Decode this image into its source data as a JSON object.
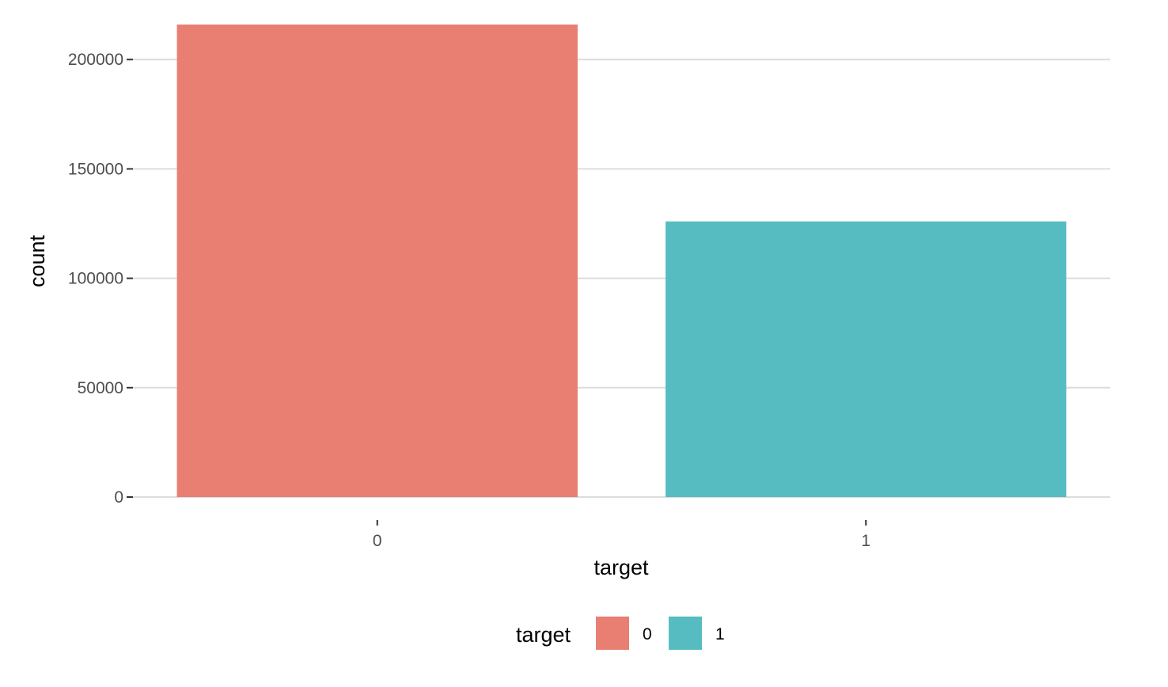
{
  "chart_data": {
    "type": "bar",
    "categories": [
      "0",
      "1"
    ],
    "values": [
      216000,
      126000
    ],
    "colors": [
      "#E87F72",
      "#56BCC2"
    ],
    "xlabel": "target",
    "ylabel": "count",
    "ylim": [
      0,
      216000
    ],
    "yticks": [
      0,
      50000,
      100000,
      150000,
      200000
    ],
    "ytick_labels": [
      "0",
      "50000",
      "100000",
      "150000",
      "200000"
    ],
    "grid": "horizontal-major",
    "legend": {
      "title": "target",
      "position": "bottom",
      "entries": [
        "0",
        "1"
      ]
    }
  }
}
